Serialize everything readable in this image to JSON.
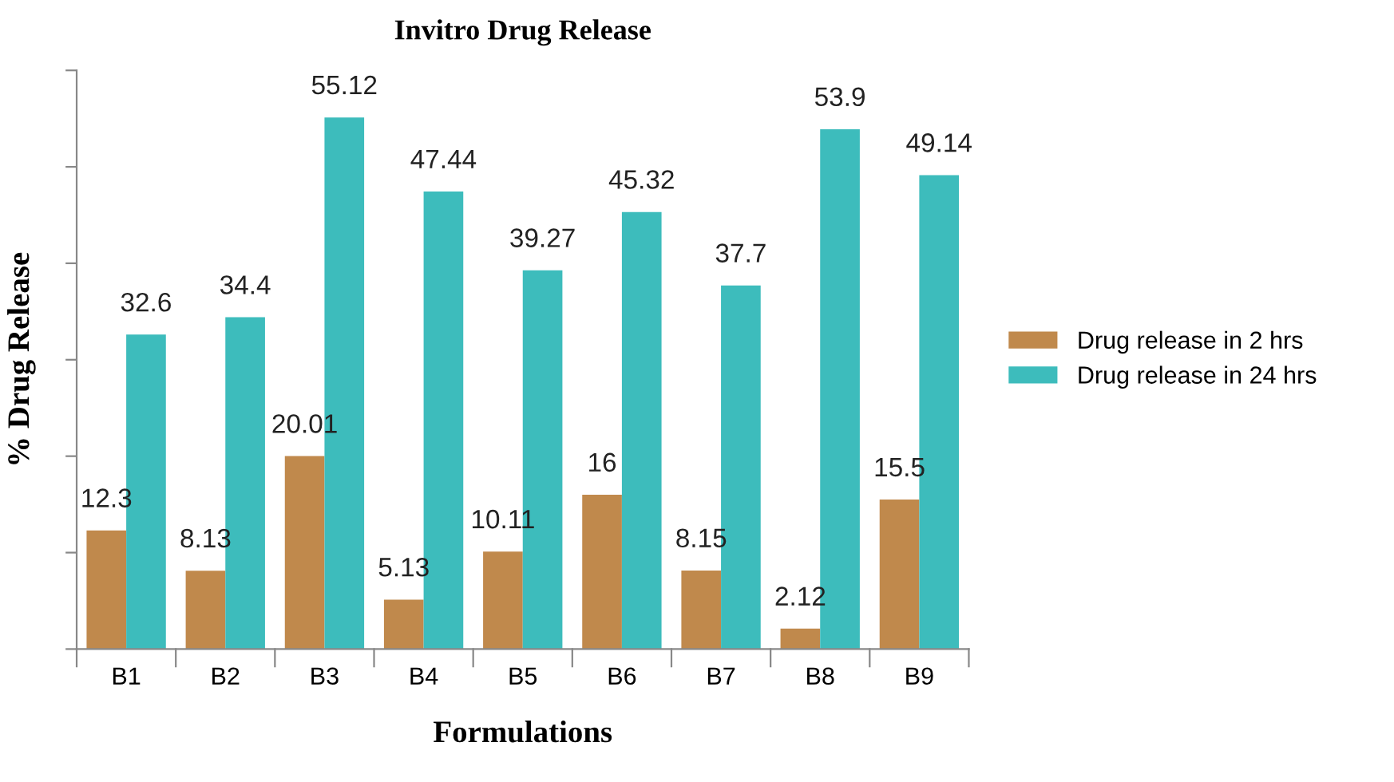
{
  "chart_data": {
    "type": "bar",
    "title": "Invitro Drug Release",
    "xlabel": "Formulations",
    "ylabel": "% Drug Release",
    "categories": [
      "B1",
      "B2",
      "B3",
      "B4",
      "B5",
      "B6",
      "B7",
      "B8",
      "B9"
    ],
    "series": [
      {
        "name": "Drug release in 2 hrs",
        "color": "#c0894c",
        "values": [
          12.3,
          8.13,
          20.01,
          5.13,
          10.11,
          16,
          8.15,
          2.12,
          15.5
        ]
      },
      {
        "name": "Drug release in 24 hrs",
        "color": "#3dbcbc",
        "values": [
          32.6,
          34.4,
          55.12,
          47.44,
          39.27,
          45.32,
          37.7,
          53.9,
          49.14
        ]
      }
    ],
    "ylim": [
      0,
      60
    ],
    "yticks": [
      {
        "value": 0,
        "label": null
      },
      {
        "value": 10,
        "label": null
      },
      {
        "value": 20,
        "label": null
      },
      {
        "value": 30,
        "label": null
      },
      {
        "value": 40,
        "label": null
      },
      {
        "value": 50,
        "label": null
      },
      {
        "value": 60,
        "label": null
      }
    ],
    "data_labels": true,
    "legend": "right",
    "grid": false
  }
}
